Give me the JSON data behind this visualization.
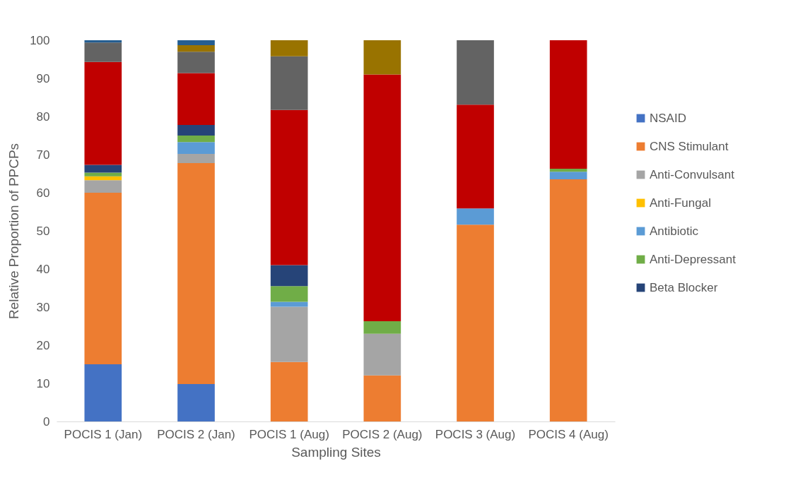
{
  "chart_data": {
    "type": "bar",
    "stacked": true,
    "xlabel": "Sampling Sites",
    "ylabel": "Relative Proportion of PPCPs",
    "categories": [
      "POCIS 1 (Jan)",
      "POCIS 2 (Jan)",
      "POCIS 1 (Aug)",
      "POCIS 2 (Aug)",
      "POCIS 3 (Aug)",
      "POCIS 4 (Aug)"
    ],
    "ylim": [
      0,
      100
    ],
    "yticks": [
      0,
      10,
      20,
      30,
      40,
      50,
      60,
      70,
      80,
      90,
      100
    ],
    "grid": false,
    "legend": "right",
    "series": [
      {
        "name": "NSAID",
        "color": "#4472c4",
        "values": [
          15.0,
          9.8,
          0,
          0,
          0,
          0
        ]
      },
      {
        "name": "CNS Stimulant",
        "color": "#ed7d31",
        "values": [
          45.0,
          58.0,
          15.6,
          12.1,
          51.6,
          63.5
        ]
      },
      {
        "name": "Anti-Convulsant",
        "color": "#a5a5a5",
        "values": [
          3.3,
          2.4,
          14.5,
          10.9,
          0,
          0
        ]
      },
      {
        "name": "Anti-Fungal",
        "color": "#ffc000",
        "values": [
          1.0,
          0,
          0,
          0,
          0,
          0
        ]
      },
      {
        "name": "Antibiotic",
        "color": "#5b9bd5",
        "values": [
          0,
          3.1,
          1.3,
          0,
          4.3,
          2.0
        ]
      },
      {
        "name": "Anti-Depressant",
        "color": "#70ad47",
        "values": [
          1.0,
          1.7,
          4.1,
          3.3,
          0,
          0.8
        ]
      },
      {
        "name": "Beta Blocker",
        "color": "#264478",
        "values": [
          2.0,
          2.8,
          5.5,
          0,
          0,
          0
        ]
      },
      {
        "color": "#c00000",
        "values": [
          27.0,
          13.6,
          40.7,
          64.7,
          27.2,
          33.7
        ]
      },
      {
        "color": "#636363",
        "values": [
          5.1,
          5.6,
          14.1,
          0,
          16.9,
          0
        ]
      },
      {
        "color": "#997300",
        "values": [
          0,
          1.7,
          4.2,
          9.0,
          0,
          0
        ]
      },
      {
        "color": "#255e91",
        "values": [
          0.6,
          1.3,
          0,
          0,
          0,
          0
        ]
      }
    ]
  }
}
